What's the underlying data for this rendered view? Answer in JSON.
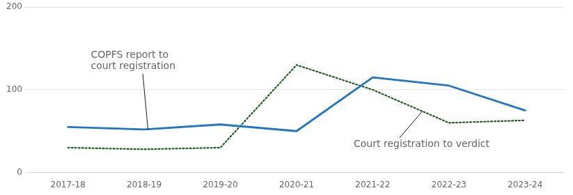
{
  "chart_data": {
    "type": "line",
    "categories": [
      "2017-18",
      "2018-19",
      "2019-20",
      "2020-21",
      "2021-22",
      "2022-23",
      "2023-24"
    ],
    "series": [
      {
        "name": "COPFS report to\ncourt registration",
        "color": "#2176c4",
        "line_style": "solid",
        "values": [
          55,
          52,
          58,
          50,
          115,
          105,
          75
        ]
      },
      {
        "name": "Court registration to verdict",
        "color": "#1a5e1a",
        "line_style": "dotted",
        "values": [
          30,
          28,
          30,
          130,
          100,
          60,
          63
        ]
      }
    ],
    "ylim": [
      0,
      200
    ],
    "yticks": [
      0,
      100,
      200
    ],
    "grid": "y",
    "legend": false
  }
}
